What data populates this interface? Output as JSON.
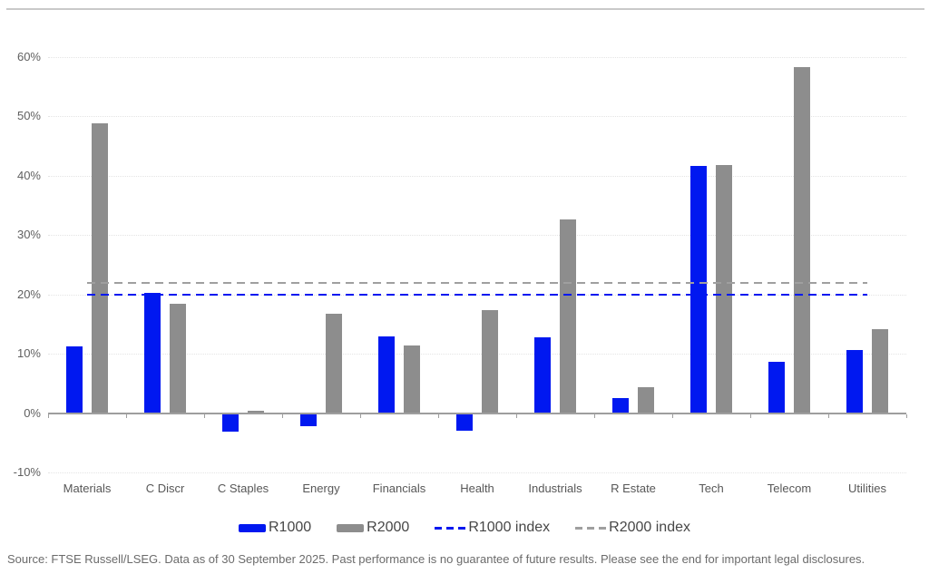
{
  "colors": {
    "r1000_blue": "#0018f0",
    "r2000_gray": "#8d8d8d",
    "r2000_index_gray": "#9f9f9f",
    "gridline": "#e4e4e4",
    "axis_line": "#9e9e9e",
    "top_rule": "#c9c9c9"
  },
  "chart_data": {
    "type": "bar",
    "title": "",
    "categories": [
      "Materials",
      "C Discr",
      "C Staples",
      "Energy",
      "Financials",
      "Health",
      "Industrials",
      "R Estate",
      "Tech",
      "Telecom",
      "Utilities"
    ],
    "series": [
      {
        "name": "R1000",
        "color": "#0018f0",
        "values": [
          11.2,
          20.3,
          -3.2,
          -2.2,
          12.9,
          -3.0,
          12.7,
          2.5,
          41.6,
          8.6,
          10.7
        ]
      },
      {
        "name": "R2000",
        "color": "#8d8d8d",
        "values": [
          48.8,
          18.5,
          0.4,
          16.8,
          11.4,
          17.4,
          32.6,
          4.4,
          41.8,
          58.3,
          14.2
        ]
      }
    ],
    "reference_lines": [
      {
        "name": "R1000 index",
        "value": 20.0,
        "color": "#0018f0",
        "style": "dashed"
      },
      {
        "name": "R2000 index",
        "value": 21.9,
        "color": "#9f9f9f",
        "style": "dashed"
      }
    ],
    "ylim": [
      -10,
      60
    ],
    "yticks": [
      {
        "value": 60,
        "label": "60%"
      },
      {
        "value": 50,
        "label": "50%"
      },
      {
        "value": 40,
        "label": "40%"
      },
      {
        "value": 30,
        "label": "30%"
      },
      {
        "value": 20,
        "label": "20%"
      },
      {
        "value": 10,
        "label": "10%"
      },
      {
        "value": 0,
        "label": "0%"
      },
      {
        "value": -10,
        "label": "-10%"
      }
    ],
    "grid": "horizontal-dotted",
    "legend_position": "bottom",
    "xlabel": "",
    "ylabel": ""
  },
  "legend": {
    "items": [
      {
        "label": "R1000",
        "swatch": "solid-bar",
        "color": "#0018f0"
      },
      {
        "label": "R2000",
        "swatch": "solid-bar",
        "color": "#8d8d8d"
      },
      {
        "label": "R1000 index",
        "swatch": "dashed-line",
        "color": "#0018f0"
      },
      {
        "label": "R2000 index",
        "swatch": "dashed-line",
        "color": "#9f9f9f"
      }
    ]
  },
  "footer": {
    "source_text": "Source: FTSE Russell/LSEG. Data as of 30 September 2025. Past performance is no guarantee of future results. Please see the end for important legal disclosures."
  }
}
